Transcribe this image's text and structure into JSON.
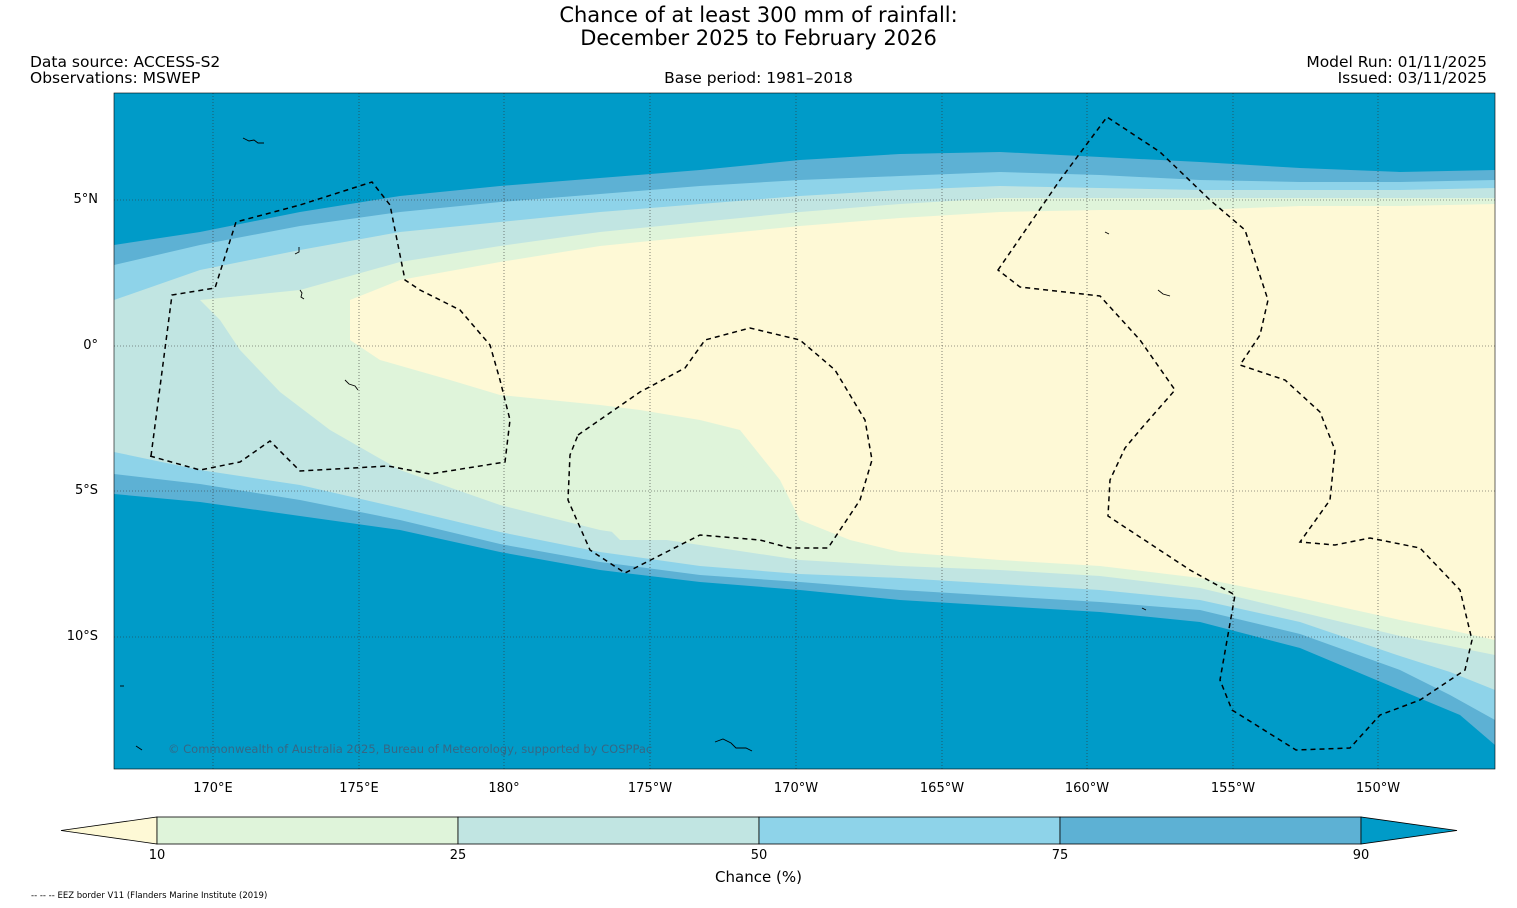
{
  "header": {
    "title_line1": "Chance of at least 300 mm of rainfall:",
    "title_line2": "December 2025 to February 2026",
    "data_source": "Data source: ACCESS-S2",
    "observations": "Observations: MSWEP",
    "base_period": "Base period: 1981–2018",
    "model_run": "Model Run: 01/11/2025",
    "issued": "Issued: 03/11/2025"
  },
  "map": {
    "lat_labels": [
      "5°N",
      "0°",
      "5°S",
      "10°S"
    ],
    "lon_labels": [
      "170°E",
      "175°E",
      "180°",
      "175°W",
      "170°W",
      "165°W",
      "160°W",
      "155°W",
      "150°W"
    ],
    "copyright": "© Commonwealth of Australia 2025, Bureau of Meteorology, supported by COSPPac",
    "colors": {
      "below_10": "#fef9d6",
      "10_25": "#dff4da",
      "25_50": "#c1e5e2",
      "50_75": "#8ed3e9",
      "75_90": "#5db1d4",
      "above_90": "#009bc8"
    }
  },
  "colorbar": {
    "label": "Chance (%)",
    "ticks": [
      "10",
      "25",
      "50",
      "75",
      "90"
    ]
  },
  "footnote": "-- -- -- EEZ border V11 (Flanders Marine Institute (2019)"
}
